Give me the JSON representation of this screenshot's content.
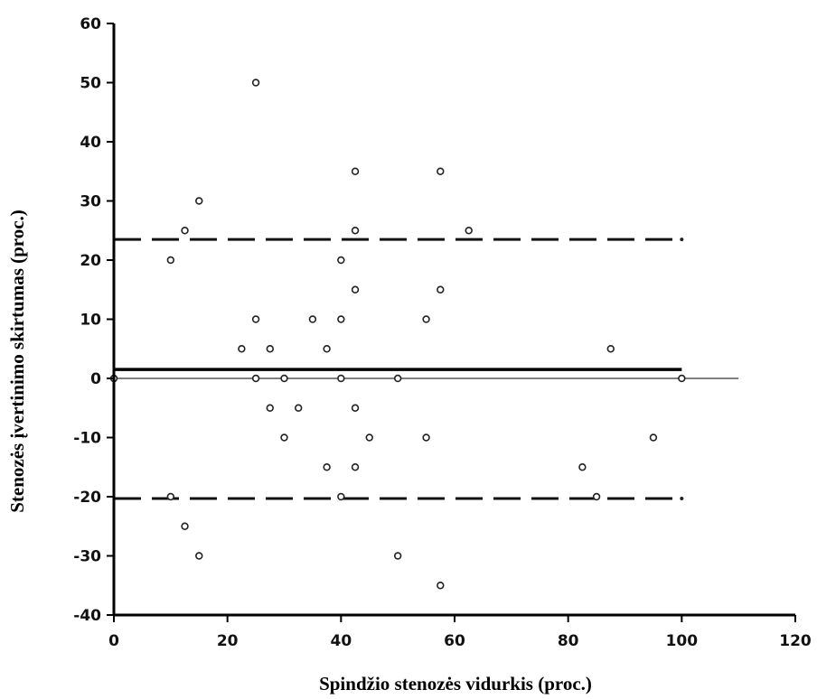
{
  "chart_data": {
    "type": "scatter",
    "title": "",
    "xlabel": "Spindžio stenozės vidurkis (proc.)",
    "ylabel": "Stenozės įvertinimo skirtumas (proc.)",
    "xlim": [
      0,
      120
    ],
    "ylim": [
      -40,
      60
    ],
    "x_ticks": [
      "0",
      "20",
      "40",
      "60",
      "80",
      "100",
      "120"
    ],
    "y_ticks": [
      "-40",
      "-30",
      "-20",
      "-10",
      "0",
      "10",
      "20",
      "30",
      "40",
      "50",
      "60"
    ],
    "grid": false,
    "points": [
      {
        "x": 25,
        "y": 50
      },
      {
        "x": 42.5,
        "y": 35
      },
      {
        "x": 57.5,
        "y": 35
      },
      {
        "x": 15,
        "y": 30
      },
      {
        "x": 12.5,
        "y": 25
      },
      {
        "x": 42.5,
        "y": 25
      },
      {
        "x": 62.5,
        "y": 25
      },
      {
        "x": 10,
        "y": 20
      },
      {
        "x": 40,
        "y": 20
      },
      {
        "x": 42.5,
        "y": 15
      },
      {
        "x": 57.5,
        "y": 15
      },
      {
        "x": 25,
        "y": 10
      },
      {
        "x": 35,
        "y": 10
      },
      {
        "x": 40,
        "y": 10
      },
      {
        "x": 55,
        "y": 10
      },
      {
        "x": 22.5,
        "y": 5
      },
      {
        "x": 27.5,
        "y": 5
      },
      {
        "x": 37.5,
        "y": 5
      },
      {
        "x": 87.5,
        "y": 5
      },
      {
        "x": 0,
        "y": 0
      },
      {
        "x": 25,
        "y": 0
      },
      {
        "x": 30,
        "y": 0
      },
      {
        "x": 40,
        "y": 0
      },
      {
        "x": 50,
        "y": 0
      },
      {
        "x": 100,
        "y": 0
      },
      {
        "x": 27.5,
        "y": -5
      },
      {
        "x": 32.5,
        "y": -5
      },
      {
        "x": 42.5,
        "y": -5
      },
      {
        "x": 30,
        "y": -10
      },
      {
        "x": 45,
        "y": -10
      },
      {
        "x": 55,
        "y": -10
      },
      {
        "x": 95,
        "y": -10
      },
      {
        "x": 37.5,
        "y": -15
      },
      {
        "x": 42.5,
        "y": -15
      },
      {
        "x": 82.5,
        "y": -15
      },
      {
        "x": 10,
        "y": -20
      },
      {
        "x": 40,
        "y": -20
      },
      {
        "x": 85,
        "y": -20
      },
      {
        "x": 12.5,
        "y": -25
      },
      {
        "x": 15,
        "y": -30
      },
      {
        "x": 50,
        "y": -30
      },
      {
        "x": 57.5,
        "y": -35
      }
    ],
    "mean_line": {
      "y": 1.5,
      "x_range": [
        0,
        100
      ]
    },
    "limit_lines": [
      {
        "y": 23.5,
        "x_range": [
          0,
          100
        ]
      },
      {
        "y": -20.3,
        "x_range": [
          0,
          100
        ]
      }
    ],
    "zero_line": {
      "y": 0,
      "x_range": [
        0,
        110
      ]
    }
  }
}
